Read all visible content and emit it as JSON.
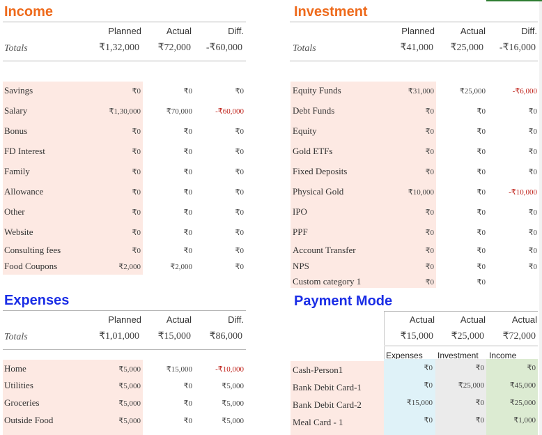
{
  "income": {
    "title": "Income",
    "headers": [
      "Planned",
      "Actual",
      "Diff."
    ],
    "totals_label": "Totals",
    "totals": [
      "₹1,32,000",
      "₹72,000",
      "-₹60,000"
    ],
    "rows": [
      {
        "label": "Savings",
        "planned": "₹0",
        "actual": "₹0",
        "diff": "₹0"
      },
      {
        "label": "Salary",
        "planned": "₹1,30,000",
        "actual": "₹70,000",
        "diff": "-₹60,000"
      },
      {
        "label": "Bonus",
        "planned": "₹0",
        "actual": "₹0",
        "diff": "₹0"
      },
      {
        "label": "FD Interest",
        "planned": "₹0",
        "actual": "₹0",
        "diff": "₹0"
      },
      {
        "label": "Family",
        "planned": "₹0",
        "actual": "₹0",
        "diff": "₹0"
      },
      {
        "label": "Allowance",
        "planned": "₹0",
        "actual": "₹0",
        "diff": "₹0"
      },
      {
        "label": "Other",
        "planned": "₹0",
        "actual": "₹0",
        "diff": "₹0"
      },
      {
        "label": "Website",
        "planned": "₹0",
        "actual": "₹0",
        "diff": "₹0"
      },
      {
        "label": "Consulting fees",
        "planned": "₹0",
        "actual": "₹0",
        "diff": "₹0"
      },
      {
        "label": "Food Coupons",
        "planned": "₹2,000",
        "actual": "₹2,000",
        "diff": "₹0"
      }
    ]
  },
  "investment": {
    "title": "Investment",
    "headers": [
      "Planned",
      "Actual",
      "Diff."
    ],
    "totals_label": "Totals",
    "totals": [
      "₹41,000",
      "₹25,000",
      "-₹16,000"
    ],
    "rows": [
      {
        "label": "Equity Funds",
        "planned": "₹31,000",
        "actual": "₹25,000",
        "diff": "-₹6,000"
      },
      {
        "label": "Debt Funds",
        "planned": "₹0",
        "actual": "₹0",
        "diff": "₹0"
      },
      {
        "label": "Equity",
        "planned": "₹0",
        "actual": "₹0",
        "diff": "₹0"
      },
      {
        "label": "Gold ETFs",
        "planned": "₹0",
        "actual": "₹0",
        "diff": "₹0"
      },
      {
        "label": "Fixed Deposits",
        "planned": "₹0",
        "actual": "₹0",
        "diff": "₹0"
      },
      {
        "label": "Physical Gold",
        "planned": "₹10,000",
        "actual": "₹0",
        "diff": "-₹10,000"
      },
      {
        "label": "IPO",
        "planned": "₹0",
        "actual": "₹0",
        "diff": "₹0"
      },
      {
        "label": "PPF",
        "planned": "₹0",
        "actual": "₹0",
        "diff": "₹0"
      },
      {
        "label": "Account Transfer",
        "planned": "₹0",
        "actual": "₹0",
        "diff": "₹0"
      },
      {
        "label": "NPS",
        "planned": "₹0",
        "actual": "₹0",
        "diff": "₹0"
      },
      {
        "label": "Custom category 1",
        "planned": "₹0",
        "actual": "₹0",
        "diff": ""
      }
    ]
  },
  "expenses": {
    "title": "Expenses",
    "headers": [
      "Planned",
      "Actual",
      "Diff."
    ],
    "totals_label": "Totals",
    "totals": [
      "₹1,01,000",
      "₹15,000",
      "₹86,000"
    ],
    "rows": [
      {
        "label": "Home",
        "planned": "₹5,000",
        "actual": "₹15,000",
        "diff": "-₹10,000"
      },
      {
        "label": "Utilities",
        "planned": "₹5,000",
        "actual": "₹0",
        "diff": "₹5,000"
      },
      {
        "label": "Groceries",
        "planned": "₹5,000",
        "actual": "₹0",
        "diff": "₹5,000"
      },
      {
        "label": "Outside Food",
        "planned": "₹5,000",
        "actual": "₹0",
        "diff": "₹5,000"
      }
    ]
  },
  "payment_mode": {
    "title": "Payment Mode",
    "headers": [
      "Actual",
      "Actual",
      "Actual"
    ],
    "totals": [
      "₹15,000",
      "₹25,000",
      "₹72,000"
    ],
    "subheaders": [
      "Expenses",
      "Investment",
      "Income"
    ],
    "rows": [
      {
        "label": "Cash-Person1",
        "expenses": "₹0",
        "investment": "₹0",
        "income": "₹0"
      },
      {
        "label": "Bank Debit Card-1",
        "expenses": "₹0",
        "investment": "₹25,000",
        "income": "₹45,000"
      },
      {
        "label": "Bank Debit Card-2",
        "expenses": "₹15,000",
        "investment": "₹0",
        "income": "₹25,000"
      },
      {
        "label": "Meal Card - 1",
        "expenses": "₹0",
        "investment": "₹0",
        "income": "₹1,000"
      }
    ]
  }
}
